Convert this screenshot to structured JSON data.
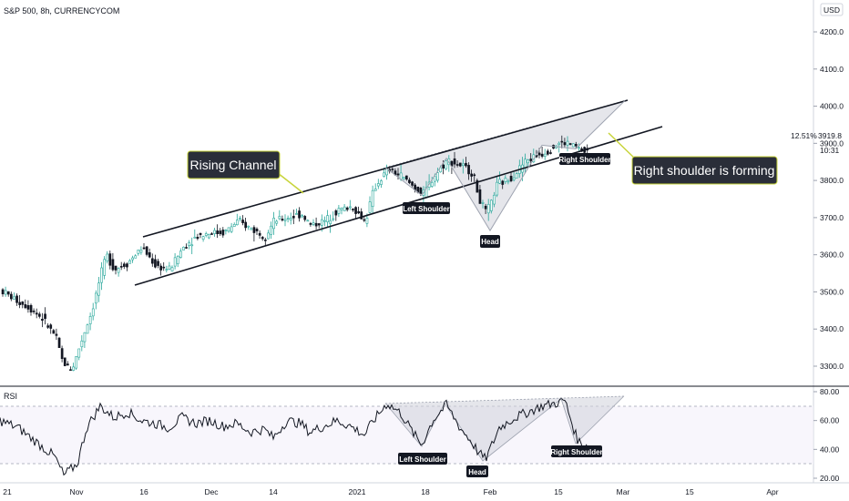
{
  "header": {
    "symbol": "S&P 500, 8h, CURRENCYCOM",
    "currency": "USD"
  },
  "colors": {
    "up": "#26a69a",
    "down": "#131722",
    "pattern_fill": "#cfd2da",
    "callout_bg": "#2a2e39",
    "callout_border": "#c8d43b"
  },
  "price_scale": {
    "ticks": [
      "4200.0",
      "4100.0",
      "4000.0",
      "3900.0",
      "3800.0",
      "3700.0",
      "3600.0",
      "3500.0",
      "3400.0",
      "3300.0"
    ],
    "last_price": "3919.8",
    "last_change": "12.51%",
    "countdown": "10:31"
  },
  "time_axis": {
    "labels": [
      "21",
      "Nov",
      "16",
      "Dec",
      "14",
      "2021",
      "18",
      "Feb",
      "15",
      "Mar",
      "15",
      "Apr"
    ]
  },
  "rsi": {
    "label": "RSI",
    "ticks": [
      "80.00",
      "60.00",
      "40.00",
      "20.00"
    ],
    "upper_band": 70,
    "lower_band": 30
  },
  "annotations": {
    "rising_channel": "Rising Channel",
    "right_shoulder_forming": "Right shoulder is forming",
    "left_shoulder": "Left Shoulder",
    "head": "Head",
    "right_shoulder": "Right Shoulder",
    "rsi_left_shoulder": "Left Shoulder",
    "rsi_head": "Head",
    "rsi_right_shoulder": "Right Shoulder"
  },
  "chart_data": [
    {
      "type": "candlestick",
      "title": "S&P 500, 8h, CURRENCYCOM",
      "ylim": [
        3280,
        4280
      ],
      "x_labels": [
        "21",
        "Nov",
        "16",
        "Dec",
        "14",
        "2021",
        "18",
        "Feb",
        "15",
        "Mar",
        "15",
        "Apr"
      ],
      "price_path": [
        [
          0,
          3505
        ],
        [
          15,
          3480
        ],
        [
          30,
          3460
        ],
        [
          45,
          3430
        ],
        [
          60,
          3380
        ],
        [
          68,
          3310
        ],
        [
          78,
          3290
        ],
        [
          90,
          3380
        ],
        [
          100,
          3450
        ],
        [
          108,
          3530
        ],
        [
          116,
          3600
        ],
        [
          125,
          3560
        ],
        [
          140,
          3580
        ],
        [
          155,
          3620
        ],
        [
          170,
          3570
        ],
        [
          185,
          3560
        ],
        [
          200,
          3620
        ],
        [
          215,
          3650
        ],
        [
          230,
          3660
        ],
        [
          245,
          3660
        ],
        [
          260,
          3690
        ],
        [
          275,
          3670
        ],
        [
          290,
          3650
        ],
        [
          300,
          3690
        ],
        [
          315,
          3700
        ],
        [
          330,
          3710
        ],
        [
          340,
          3680
        ],
        [
          355,
          3690
        ],
        [
          370,
          3720
        ],
        [
          385,
          3730
        ],
        [
          400,
          3690
        ],
        [
          410,
          3780
        ],
        [
          425,
          3830
        ],
        [
          440,
          3810
        ],
        [
          455,
          3780
        ],
        [
          463,
          3760
        ],
        [
          475,
          3810
        ],
        [
          490,
          3855
        ],
        [
          505,
          3840
        ],
        [
          518,
          3820
        ],
        [
          525,
          3750
        ],
        [
          533,
          3710
        ],
        [
          538,
          3740
        ],
        [
          545,
          3790
        ],
        [
          555,
          3800
        ],
        [
          565,
          3820
        ],
        [
          575,
          3850
        ],
        [
          590,
          3870
        ],
        [
          600,
          3880
        ],
        [
          612,
          3900
        ],
        [
          622,
          3900
        ],
        [
          632,
          3890
        ],
        [
          640,
          3875
        ],
        [
          645,
          3880
        ]
      ],
      "left_shoulder_low": 3760,
      "head_low": 3665,
      "right_shoulder_low": 3885
    },
    {
      "type": "line",
      "title": "RSI",
      "ylim": [
        15,
        85
      ],
      "series": [
        {
          "values": [
            [
              0,
              60
            ],
            [
              20,
              55
            ],
            [
              40,
              45
            ],
            [
              60,
              35
            ],
            [
              70,
              22
            ],
            [
              85,
              30
            ],
            [
              95,
              55
            ],
            [
              110,
              70
            ],
            [
              125,
              62
            ],
            [
              140,
              66
            ],
            [
              155,
              60
            ],
            [
              170,
              58
            ],
            [
              185,
              55
            ],
            [
              200,
              62
            ],
            [
              215,
              58
            ],
            [
              230,
              60
            ],
            [
              245,
              56
            ],
            [
              260,
              58
            ],
            [
              275,
              52
            ],
            [
              290,
              54
            ],
            [
              300,
              48
            ],
            [
              315,
              60
            ],
            [
              330,
              58
            ],
            [
              340,
              52
            ],
            [
              355,
              56
            ],
            [
              370,
              60
            ],
            [
              385,
              56
            ],
            [
              400,
              50
            ],
            [
              410,
              60
            ],
            [
              425,
              72
            ],
            [
              440,
              65
            ],
            [
              455,
              50
            ],
            [
              463,
              43
            ],
            [
              475,
              60
            ],
            [
              490,
              71
            ],
            [
              505,
              55
            ],
            [
              518,
              45
            ],
            [
              525,
              38
            ],
            [
              533,
              33
            ],
            [
              538,
              40
            ],
            [
              548,
              55
            ],
            [
              565,
              62
            ],
            [
              580,
              66
            ],
            [
              595,
              70
            ],
            [
              610,
              72
            ],
            [
              620,
              74
            ],
            [
              628,
              58
            ],
            [
              633,
              48
            ],
            [
              640,
              42
            ],
            [
              645,
              44
            ]
          ]
        }
      ]
    }
  ]
}
